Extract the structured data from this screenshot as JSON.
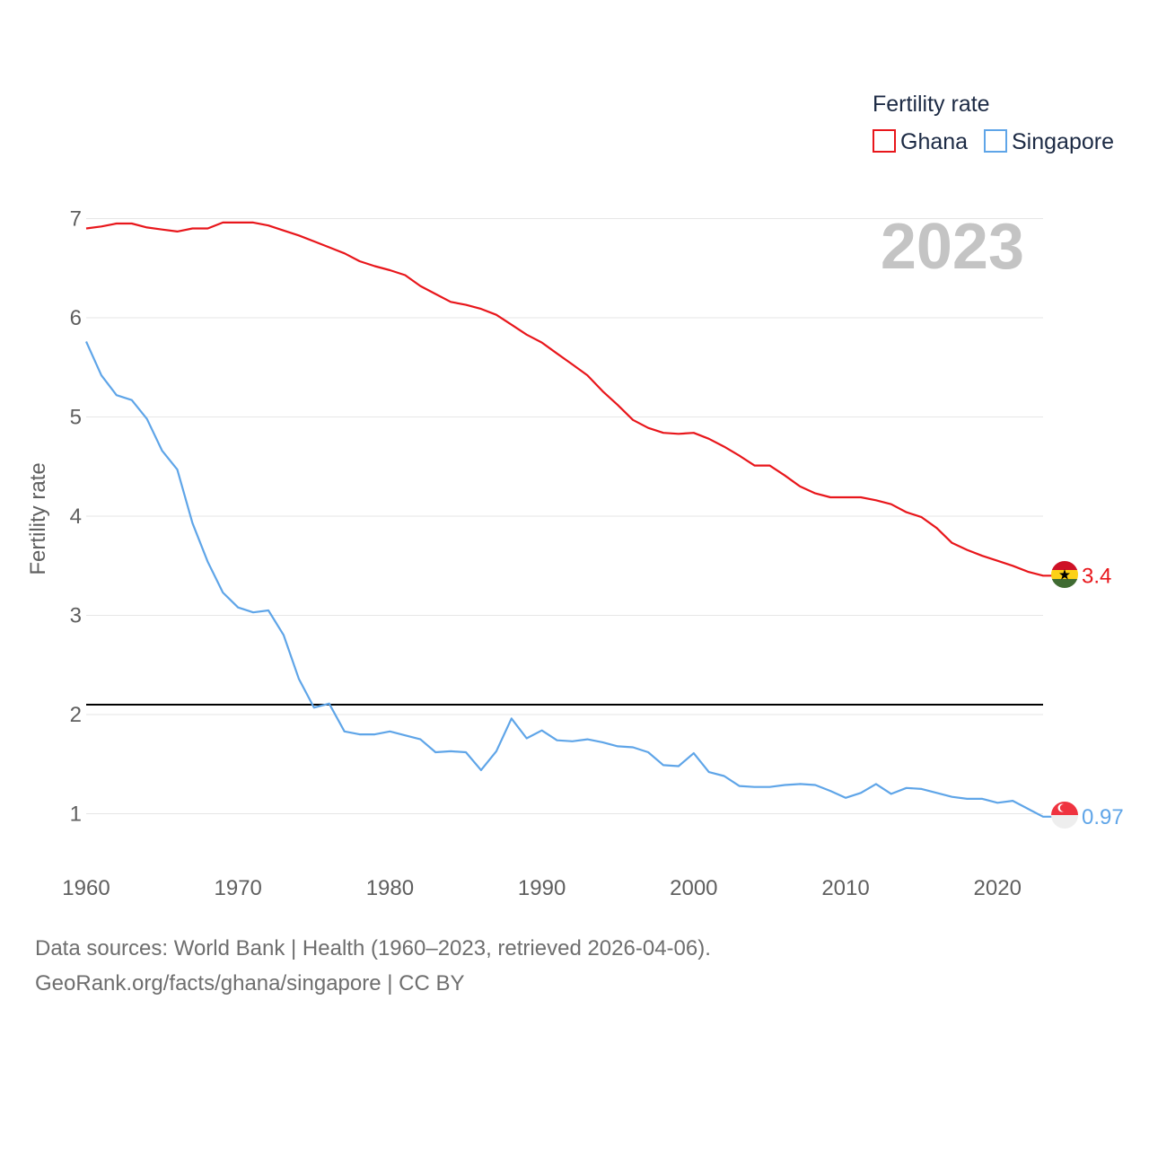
{
  "chart_data": {
    "type": "line",
    "title": "",
    "xlabel": "",
    "ylabel": "Fertility rate",
    "xlim": [
      1960,
      2023
    ],
    "ylim": [
      0.4,
      7.4
    ],
    "x_ticks": [
      1960,
      1970,
      1980,
      1990,
      2000,
      2010,
      2020
    ],
    "y_ticks": [
      1,
      2,
      3,
      4,
      5,
      6,
      7
    ],
    "grid": true,
    "year_label": "2023",
    "reference_line": {
      "y": 2.1,
      "color": "#000000"
    },
    "legend": {
      "title": "Fertility rate",
      "position": "top-right"
    },
    "x": [
      1960,
      1961,
      1962,
      1963,
      1964,
      1965,
      1966,
      1967,
      1968,
      1969,
      1970,
      1971,
      1972,
      1973,
      1974,
      1975,
      1976,
      1977,
      1978,
      1979,
      1980,
      1981,
      1982,
      1983,
      1984,
      1985,
      1986,
      1987,
      1988,
      1989,
      1990,
      1991,
      1992,
      1993,
      1994,
      1995,
      1996,
      1997,
      1998,
      1999,
      2000,
      2001,
      2002,
      2003,
      2004,
      2005,
      2006,
      2007,
      2008,
      2009,
      2010,
      2011,
      2012,
      2013,
      2014,
      2015,
      2016,
      2017,
      2018,
      2019,
      2020,
      2021,
      2022,
      2023
    ],
    "series": [
      {
        "name": "Ghana",
        "color": "#e8161b",
        "end_label": "3.4",
        "values": [
          6.9,
          6.92,
          6.95,
          6.95,
          6.91,
          6.89,
          6.87,
          6.9,
          6.9,
          6.96,
          6.96,
          6.96,
          6.93,
          6.88,
          6.83,
          6.77,
          6.71,
          6.65,
          6.57,
          6.52,
          6.48,
          6.43,
          6.32,
          6.24,
          6.16,
          6.13,
          6.09,
          6.03,
          5.93,
          5.83,
          5.75,
          5.64,
          5.53,
          5.42,
          5.26,
          5.12,
          4.97,
          4.89,
          4.84,
          4.83,
          4.84,
          4.78,
          4.7,
          4.61,
          4.51,
          4.51,
          4.41,
          4.3,
          4.23,
          4.19,
          4.19,
          4.19,
          4.16,
          4.12,
          4.04,
          3.99,
          3.88,
          3.73,
          3.66,
          3.6,
          3.55,
          3.5,
          3.44,
          3.4
        ]
      },
      {
        "name": "Singapore",
        "color": "#5fa5e8",
        "end_label": "0.97",
        "values": [
          5.76,
          5.42,
          5.22,
          5.17,
          4.98,
          4.66,
          4.47,
          3.93,
          3.54,
          3.23,
          3.08,
          3.03,
          3.05,
          2.8,
          2.36,
          2.07,
          2.11,
          1.83,
          1.8,
          1.8,
          1.83,
          1.79,
          1.75,
          1.62,
          1.63,
          1.62,
          1.44,
          1.63,
          1.96,
          1.76,
          1.84,
          1.74,
          1.73,
          1.75,
          1.72,
          1.68,
          1.67,
          1.62,
          1.49,
          1.48,
          1.61,
          1.42,
          1.38,
          1.28,
          1.27,
          1.27,
          1.29,
          1.3,
          1.29,
          1.23,
          1.16,
          1.21,
          1.3,
          1.2,
          1.26,
          1.25,
          1.21,
          1.17,
          1.15,
          1.15,
          1.11,
          1.13,
          1.05,
          0.97
        ]
      }
    ]
  },
  "source": {
    "line1": "Data sources: World Bank | Health (1960–2023, retrieved 2026-04-06).",
    "line2": "GeoRank.org/facts/ghana/singapore | CC BY"
  }
}
